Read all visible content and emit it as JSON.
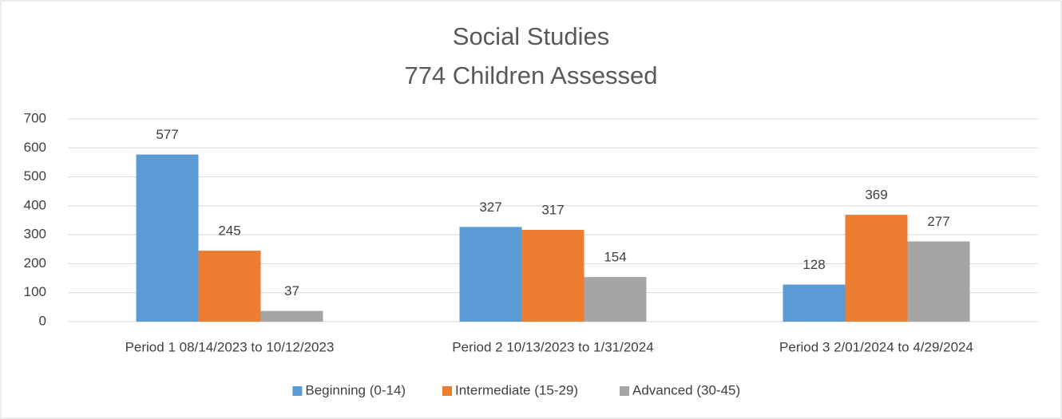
{
  "chart_data": {
    "type": "bar",
    "title": "Social Studies",
    "subtitle": "774 Children Assessed",
    "categories": [
      "Period 1 08/14/2023 to 10/12/2023",
      "Period 2 10/13/2023 to 1/31/2024",
      "Period 3 2/01/2024 to 4/29/2024"
    ],
    "series": [
      {
        "name": "Beginning (0-14)",
        "color": "#5b9bd5",
        "values": [
          577,
          327,
          128
        ]
      },
      {
        "name": "Intermediate (15-29)",
        "color": "#ed7d31",
        "values": [
          245,
          317,
          369
        ]
      },
      {
        "name": "Advanced (30-45)",
        "color": "#a5a5a5",
        "values": [
          37,
          154,
          277
        ]
      }
    ],
    "ylim": [
      0,
      700
    ],
    "yticks": [
      0,
      100,
      200,
      300,
      400,
      500,
      600,
      700
    ],
    "grid": true,
    "legend": "bottom"
  }
}
